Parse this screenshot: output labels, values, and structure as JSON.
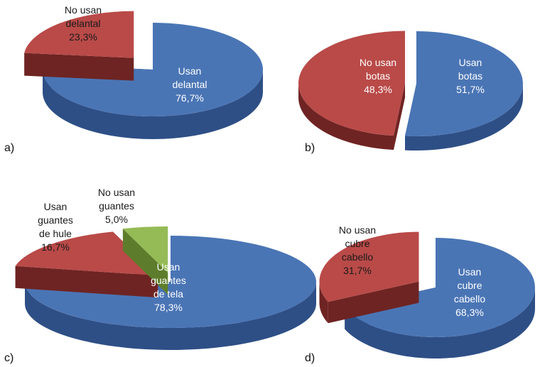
{
  "colors": {
    "blue_top": "#4A75B5",
    "blue_side": "#2E4F86",
    "red_top": "#B94A48",
    "red_side": "#6E2423",
    "green_top": "#95BB56",
    "green_side": "#5E7D2C"
  },
  "chart_data": [
    {
      "type": "pie",
      "panel_label": "a)",
      "slices": [
        {
          "label": [
            "Usan",
            "delantal",
            "76,7%"
          ],
          "value": 76.7,
          "color": "blue",
          "exploded": false
        },
        {
          "label": [
            "No usan",
            "delantal",
            "23,3%"
          ],
          "value": 23.3,
          "color": "red",
          "exploded": true
        }
      ]
    },
    {
      "type": "pie",
      "panel_label": "b)",
      "slices": [
        {
          "label": [
            "Usan",
            "botas",
            "51,7%"
          ],
          "value": 51.7,
          "color": "blue",
          "exploded": false
        },
        {
          "label": [
            "No usan",
            "botas",
            "48,3%"
          ],
          "value": 48.3,
          "color": "red",
          "exploded": true
        }
      ]
    },
    {
      "type": "pie",
      "panel_label": "c)",
      "slices": [
        {
          "label": [
            "Usan",
            "guantes",
            "de tela",
            "78,3%"
          ],
          "value": 78.3,
          "color": "blue",
          "exploded": false
        },
        {
          "label": [
            "Usan",
            "guantes",
            "de hule",
            "16,7%"
          ],
          "value": 16.7,
          "color": "red",
          "exploded": true
        },
        {
          "label": [
            "No usan",
            "guantes",
            "5,0%"
          ],
          "value": 5.0,
          "color": "green",
          "exploded": true
        }
      ]
    },
    {
      "type": "pie",
      "panel_label": "d)",
      "slices": [
        {
          "label": [
            "Usan",
            "cubre",
            "cabello",
            "68,3%"
          ],
          "value": 68.3,
          "color": "blue",
          "exploded": false
        },
        {
          "label": [
            "No usan",
            "cubre",
            "cabello",
            "31,7%"
          ],
          "value": 31.7,
          "color": "red",
          "exploded": true
        }
      ]
    }
  ]
}
